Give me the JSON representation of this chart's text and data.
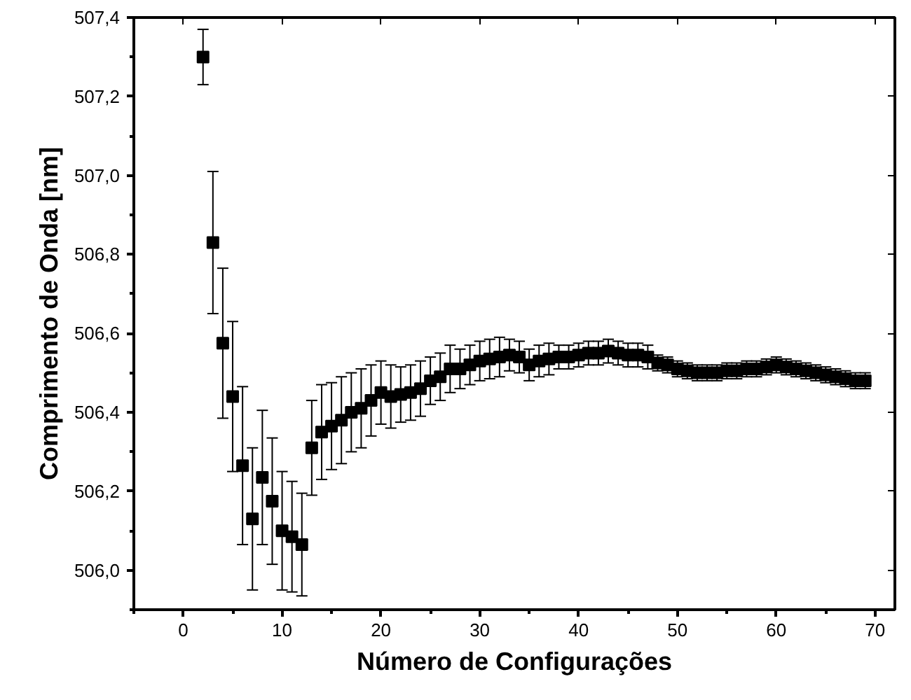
{
  "chart_data": {
    "type": "scatter",
    "xlabel": "Número de Configurações",
    "ylabel": "Comprimento de Onda [nm]",
    "x": [
      2,
      3,
      4,
      5,
      6,
      7,
      8,
      9,
      10,
      11,
      12,
      13,
      14,
      15,
      16,
      17,
      18,
      19,
      20,
      21,
      22,
      23,
      24,
      25,
      26,
      27,
      28,
      29,
      30,
      31,
      32,
      33,
      34,
      35,
      36,
      37,
      38,
      39,
      40,
      41,
      42,
      43,
      44,
      45,
      46,
      47,
      48,
      49,
      50,
      51,
      52,
      53,
      54,
      55,
      56,
      57,
      58,
      59,
      60,
      61,
      62,
      63,
      64,
      65,
      66,
      67,
      68,
      69
    ],
    "series": [
      {
        "color": "#000000",
        "values": [
          507.3,
          506.83,
          506.575,
          506.44,
          506.265,
          506.13,
          506.235,
          506.175,
          506.1,
          506.085,
          506.065,
          506.31,
          506.35,
          506.365,
          506.38,
          506.4,
          506.41,
          506.43,
          506.45,
          506.44,
          506.445,
          506.45,
          506.46,
          506.48,
          506.49,
          506.51,
          506.51,
          506.52,
          506.53,
          506.535,
          506.54,
          506.545,
          506.54,
          506.52,
          506.53,
          506.535,
          506.54,
          506.54,
          506.545,
          506.55,
          506.55,
          506.555,
          506.55,
          506.545,
          506.545,
          506.54,
          506.525,
          506.52,
          506.51,
          506.505,
          506.5,
          506.5,
          506.5,
          506.505,
          506.505,
          506.51,
          506.51,
          506.515,
          506.52,
          506.515,
          506.51,
          506.505,
          506.5,
          506.495,
          506.49,
          506.485,
          506.48,
          506.48
        ],
        "errors": [
          0.07,
          0.18,
          0.19,
          0.19,
          0.2,
          0.18,
          0.17,
          0.16,
          0.15,
          0.14,
          0.13,
          0.12,
          0.12,
          0.11,
          0.11,
          0.1,
          0.1,
          0.09,
          0.08,
          0.08,
          0.07,
          0.07,
          0.07,
          0.06,
          0.06,
          0.06,
          0.05,
          0.05,
          0.05,
          0.05,
          0.05,
          0.04,
          0.04,
          0.04,
          0.04,
          0.04,
          0.03,
          0.03,
          0.03,
          0.03,
          0.03,
          0.03,
          0.03,
          0.03,
          0.03,
          0.03,
          0.02,
          0.02,
          0.02,
          0.02,
          0.02,
          0.02,
          0.02,
          0.02,
          0.02,
          0.02,
          0.02,
          0.02,
          0.02,
          0.02,
          0.02,
          0.02,
          0.02,
          0.02,
          0.02,
          0.02,
          0.02,
          0.02
        ]
      }
    ],
    "marker": "square",
    "grid": false,
    "xlim": [
      -5,
      72
    ],
    "xticks": [
      0,
      10,
      20,
      30,
      40,
      50,
      60,
      70
    ],
    "ylim": [
      505.9,
      507.4
    ],
    "yticks": [
      {
        "value": 506.0,
        "label": "506,0"
      },
      {
        "value": 506.2,
        "label": "506,2"
      },
      {
        "value": 506.4,
        "label": "506,4"
      },
      {
        "value": 506.6,
        "label": "506,6"
      },
      {
        "value": 506.8,
        "label": "506,8"
      },
      {
        "value": 507.0,
        "label": "507,0"
      },
      {
        "value": 507.2,
        "label": "507,2"
      },
      {
        "value": 507.4,
        "label": "507,4"
      }
    ]
  }
}
